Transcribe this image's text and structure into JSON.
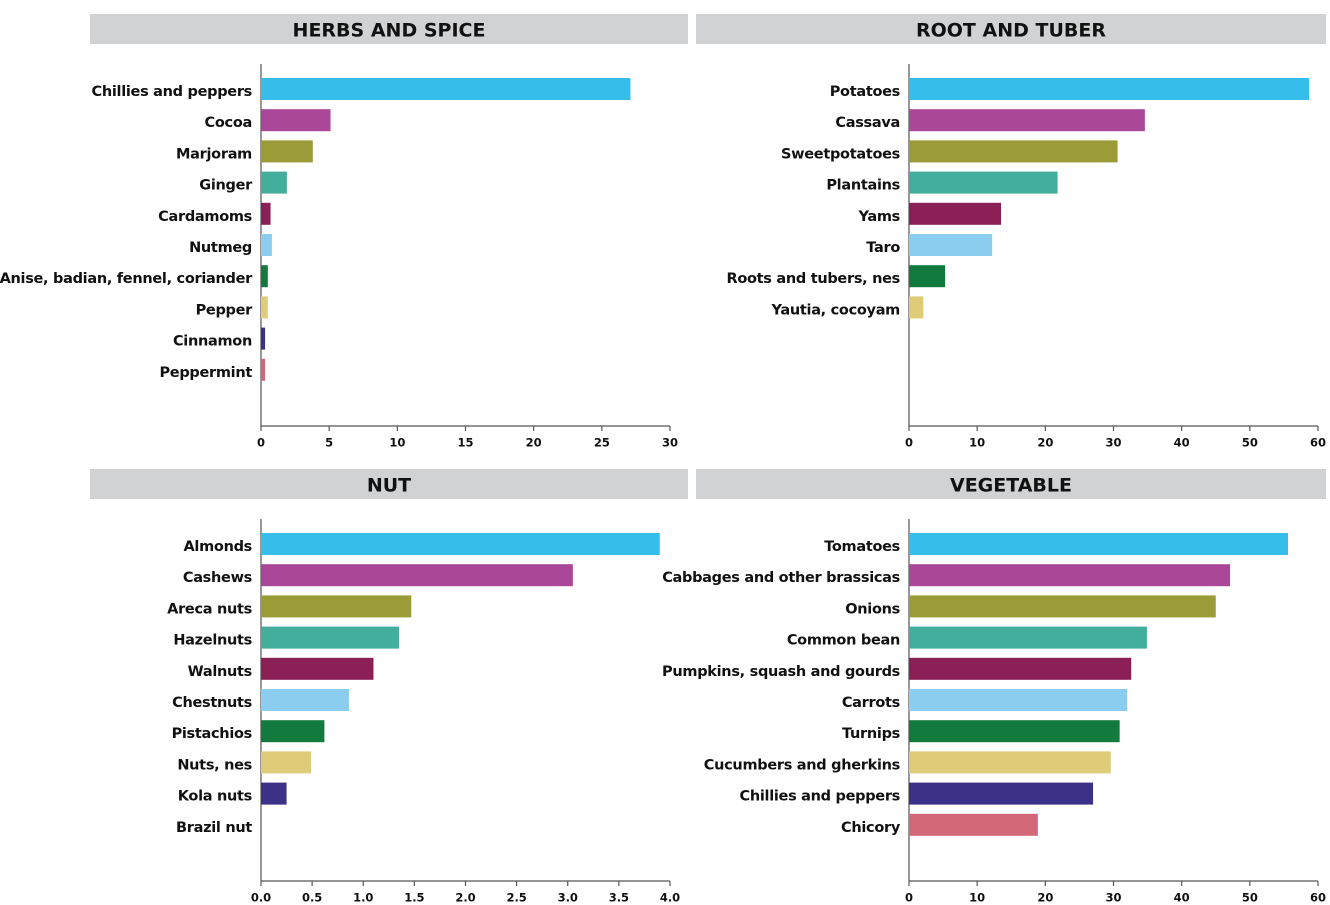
{
  "chart_data": [
    {
      "type": "bar",
      "title": "HERBS AND SPICE",
      "categories": [
        "Chillies and peppers",
        "Cocoa",
        "Marjoram",
        "Ginger",
        "Cardamoms",
        "Nutmeg",
        "Anise, badian, fennel, coriander",
        "Pepper",
        "Cinnamon",
        "Peppermint"
      ],
      "values": [
        27.1,
        5.1,
        3.8,
        1.9,
        0.7,
        0.8,
        0.5,
        0.5,
        0.3,
        0.3
      ],
      "colors": [
        "#35bdec",
        "#ab4799",
        "#9b9b37",
        "#44ae9c",
        "#8b2057",
        "#8bcdef",
        "#127a3c",
        "#dfcc78",
        "#3b3187",
        "#d26877"
      ],
      "xlim": [
        0,
        30
      ],
      "xticks": [
        0,
        5,
        10,
        15,
        20,
        25,
        30
      ]
    },
    {
      "type": "bar",
      "title": "ROOT AND TUBER",
      "categories": [
        "Potatoes",
        "Cassava",
        "Sweetpotatoes",
        "Plantains",
        "Yams",
        "Taro",
        "Roots and tubers, nes",
        "Yautia, cocoyam"
      ],
      "values": [
        58.7,
        34.6,
        30.6,
        21.8,
        13.5,
        12.2,
        5.3,
        2.1
      ],
      "colors": [
        "#35bdec",
        "#ab4799",
        "#9b9b37",
        "#44ae9c",
        "#8b2057",
        "#8bcdef",
        "#127a3c",
        "#dfcc78"
      ],
      "xlim": [
        0,
        60
      ],
      "xticks": [
        0,
        10,
        20,
        30,
        40,
        50,
        60
      ]
    },
    {
      "type": "bar",
      "title": "NUT",
      "categories": [
        "Almonds",
        "Cashews",
        "Areca nuts",
        "Hazelnuts",
        "Walnuts",
        "Chestnuts",
        "Pistachios",
        "Nuts, nes",
        "Kola nuts",
        "Brazil nut"
      ],
      "values": [
        3.9,
        3.05,
        1.47,
        1.35,
        1.1,
        0.86,
        0.62,
        0.49,
        0.25,
        0
      ],
      "colors": [
        "#35bdec",
        "#ab4799",
        "#9b9b37",
        "#44ae9c",
        "#8b2057",
        "#8bcdef",
        "#127a3c",
        "#dfcc78",
        "#3b3187",
        "#d26877"
      ],
      "xlim": [
        0,
        4
      ],
      "xticks": [
        {
          "value": 0,
          "label": "0.0"
        },
        0.5,
        {
          "value": 1,
          "label": "1.0"
        },
        1.5,
        {
          "value": 2,
          "label": "2.0"
        },
        2.5,
        {
          "value": 3,
          "label": "3.0"
        },
        3.5,
        {
          "value": 4,
          "label": "4.0"
        }
      ]
    },
    {
      "type": "bar",
      "title": "VEGETABLE",
      "categories": [
        "Tomatoes",
        "Cabbages and other brassicas",
        "Onions",
        "Common bean",
        "Pumpkins, squash and gourds",
        "Carrots",
        "Turnips",
        "Cucumbers and gherkins",
        "Chillies and peppers",
        "Chicory"
      ],
      "values": [
        55.6,
        47.1,
        45.0,
        34.9,
        32.6,
        32.0,
        30.9,
        29.6,
        27.0,
        18.9
      ],
      "colors": [
        "#35bdec",
        "#ab4799",
        "#9b9b37",
        "#44ae9c",
        "#8b2057",
        "#8bcdef",
        "#127a3c",
        "#dfcc78",
        "#3b3187",
        "#d26877"
      ],
      "xlim": [
        0,
        60
      ],
      "xticks": [
        0,
        10,
        20,
        30,
        40,
        50,
        60
      ]
    }
  ]
}
